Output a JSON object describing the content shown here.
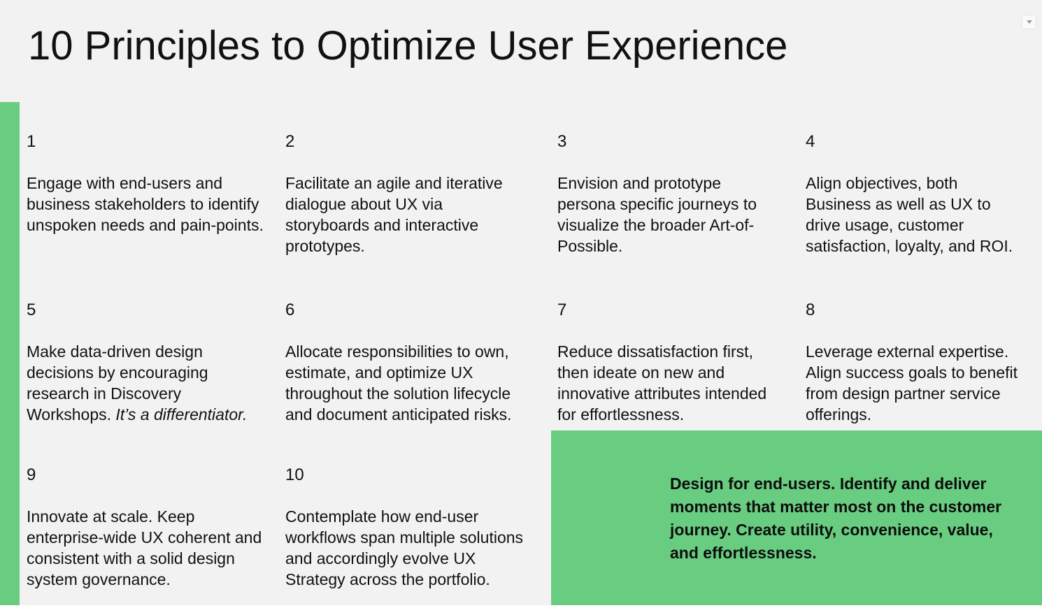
{
  "slide": {
    "title": "10 Principles to Optimize User Experience",
    "principles": [
      {
        "number": "1",
        "text": "Engage with end-users and business stakeholders to identify unspoken needs and pain-points."
      },
      {
        "number": "2",
        "text": "Facilitate an agile and iterative dialogue about UX via storyboards and interactive prototypes."
      },
      {
        "number": "3",
        "text": "Envision and prototype persona specific journeys to visualize the broader Art-of-Possible."
      },
      {
        "number": "4",
        "text": "Align objectives, both Business as well as UX to drive usage, customer satisfaction, loyalty, and ROI."
      },
      {
        "number": "5",
        "text": "Make data-driven design decisions by encouraging research in Discovery Workshops. ",
        "italic_text": "It’s a differentiator."
      },
      {
        "number": "6",
        "text": "Allocate responsibilities to own, estimate, and optimize UX throughout the solution lifecycle and document anticipated risks."
      },
      {
        "number": "7",
        "text": "Reduce dissatisfaction first, then ideate on new and innovative attributes intended for effortlessness."
      },
      {
        "number": "8",
        "text": "Leverage external expertise. Align success goals to benefit from design partner service offerings."
      },
      {
        "number": "9",
        "text": "Innovate at scale. Keep enterprise-wide UX coherent and consistent with a solid design system governance."
      },
      {
        "number": "10",
        "text": "Contemplate how end-user workflows span multiple solutions and accordingly evolve UX Strategy across the portfolio."
      }
    ],
    "callout": {
      "text": "Design for end-users. Identify and deliver moments that matter most on the customer journey. Create utility, convenience, value, and effortlessness."
    },
    "colors": {
      "accent_green": "#69cd81",
      "background": "#f2f2f2",
      "text": "#111111"
    }
  },
  "controls": {
    "collapse_button": "chevron-down"
  }
}
